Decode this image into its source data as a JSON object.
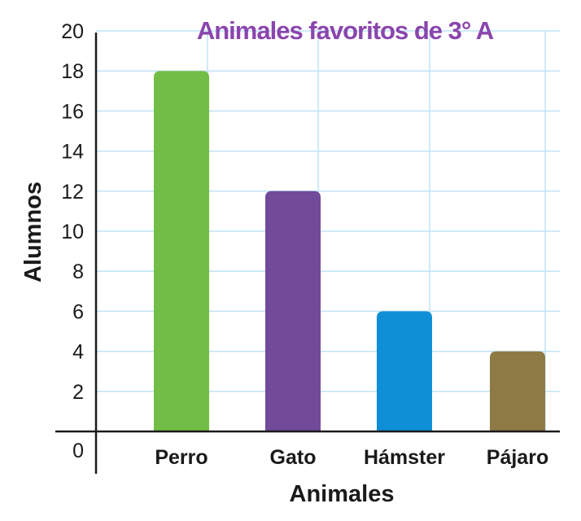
{
  "chart_data": {
    "type": "bar",
    "title": "Animales favoritos de 3° A",
    "xlabel": "Animales",
    "ylabel": "Alumnos",
    "categories": [
      "Perro",
      "Gato",
      "Hámster",
      "Pájaro"
    ],
    "values": [
      18,
      12,
      6,
      4
    ],
    "ylim": [
      0,
      20
    ],
    "yticks": [
      "0",
      "2",
      "4",
      "6",
      "8",
      "10",
      "12",
      "14",
      "16",
      "18",
      "20"
    ],
    "grid": true,
    "legend": "none"
  },
  "colors": {
    "bars": [
      "#72bd45",
      "#714a9a",
      "#0e8fd6",
      "#8e7a44"
    ],
    "title": "#8a45ad",
    "grid": "#bfe3f7",
    "axis": "#1a1a1a"
  }
}
